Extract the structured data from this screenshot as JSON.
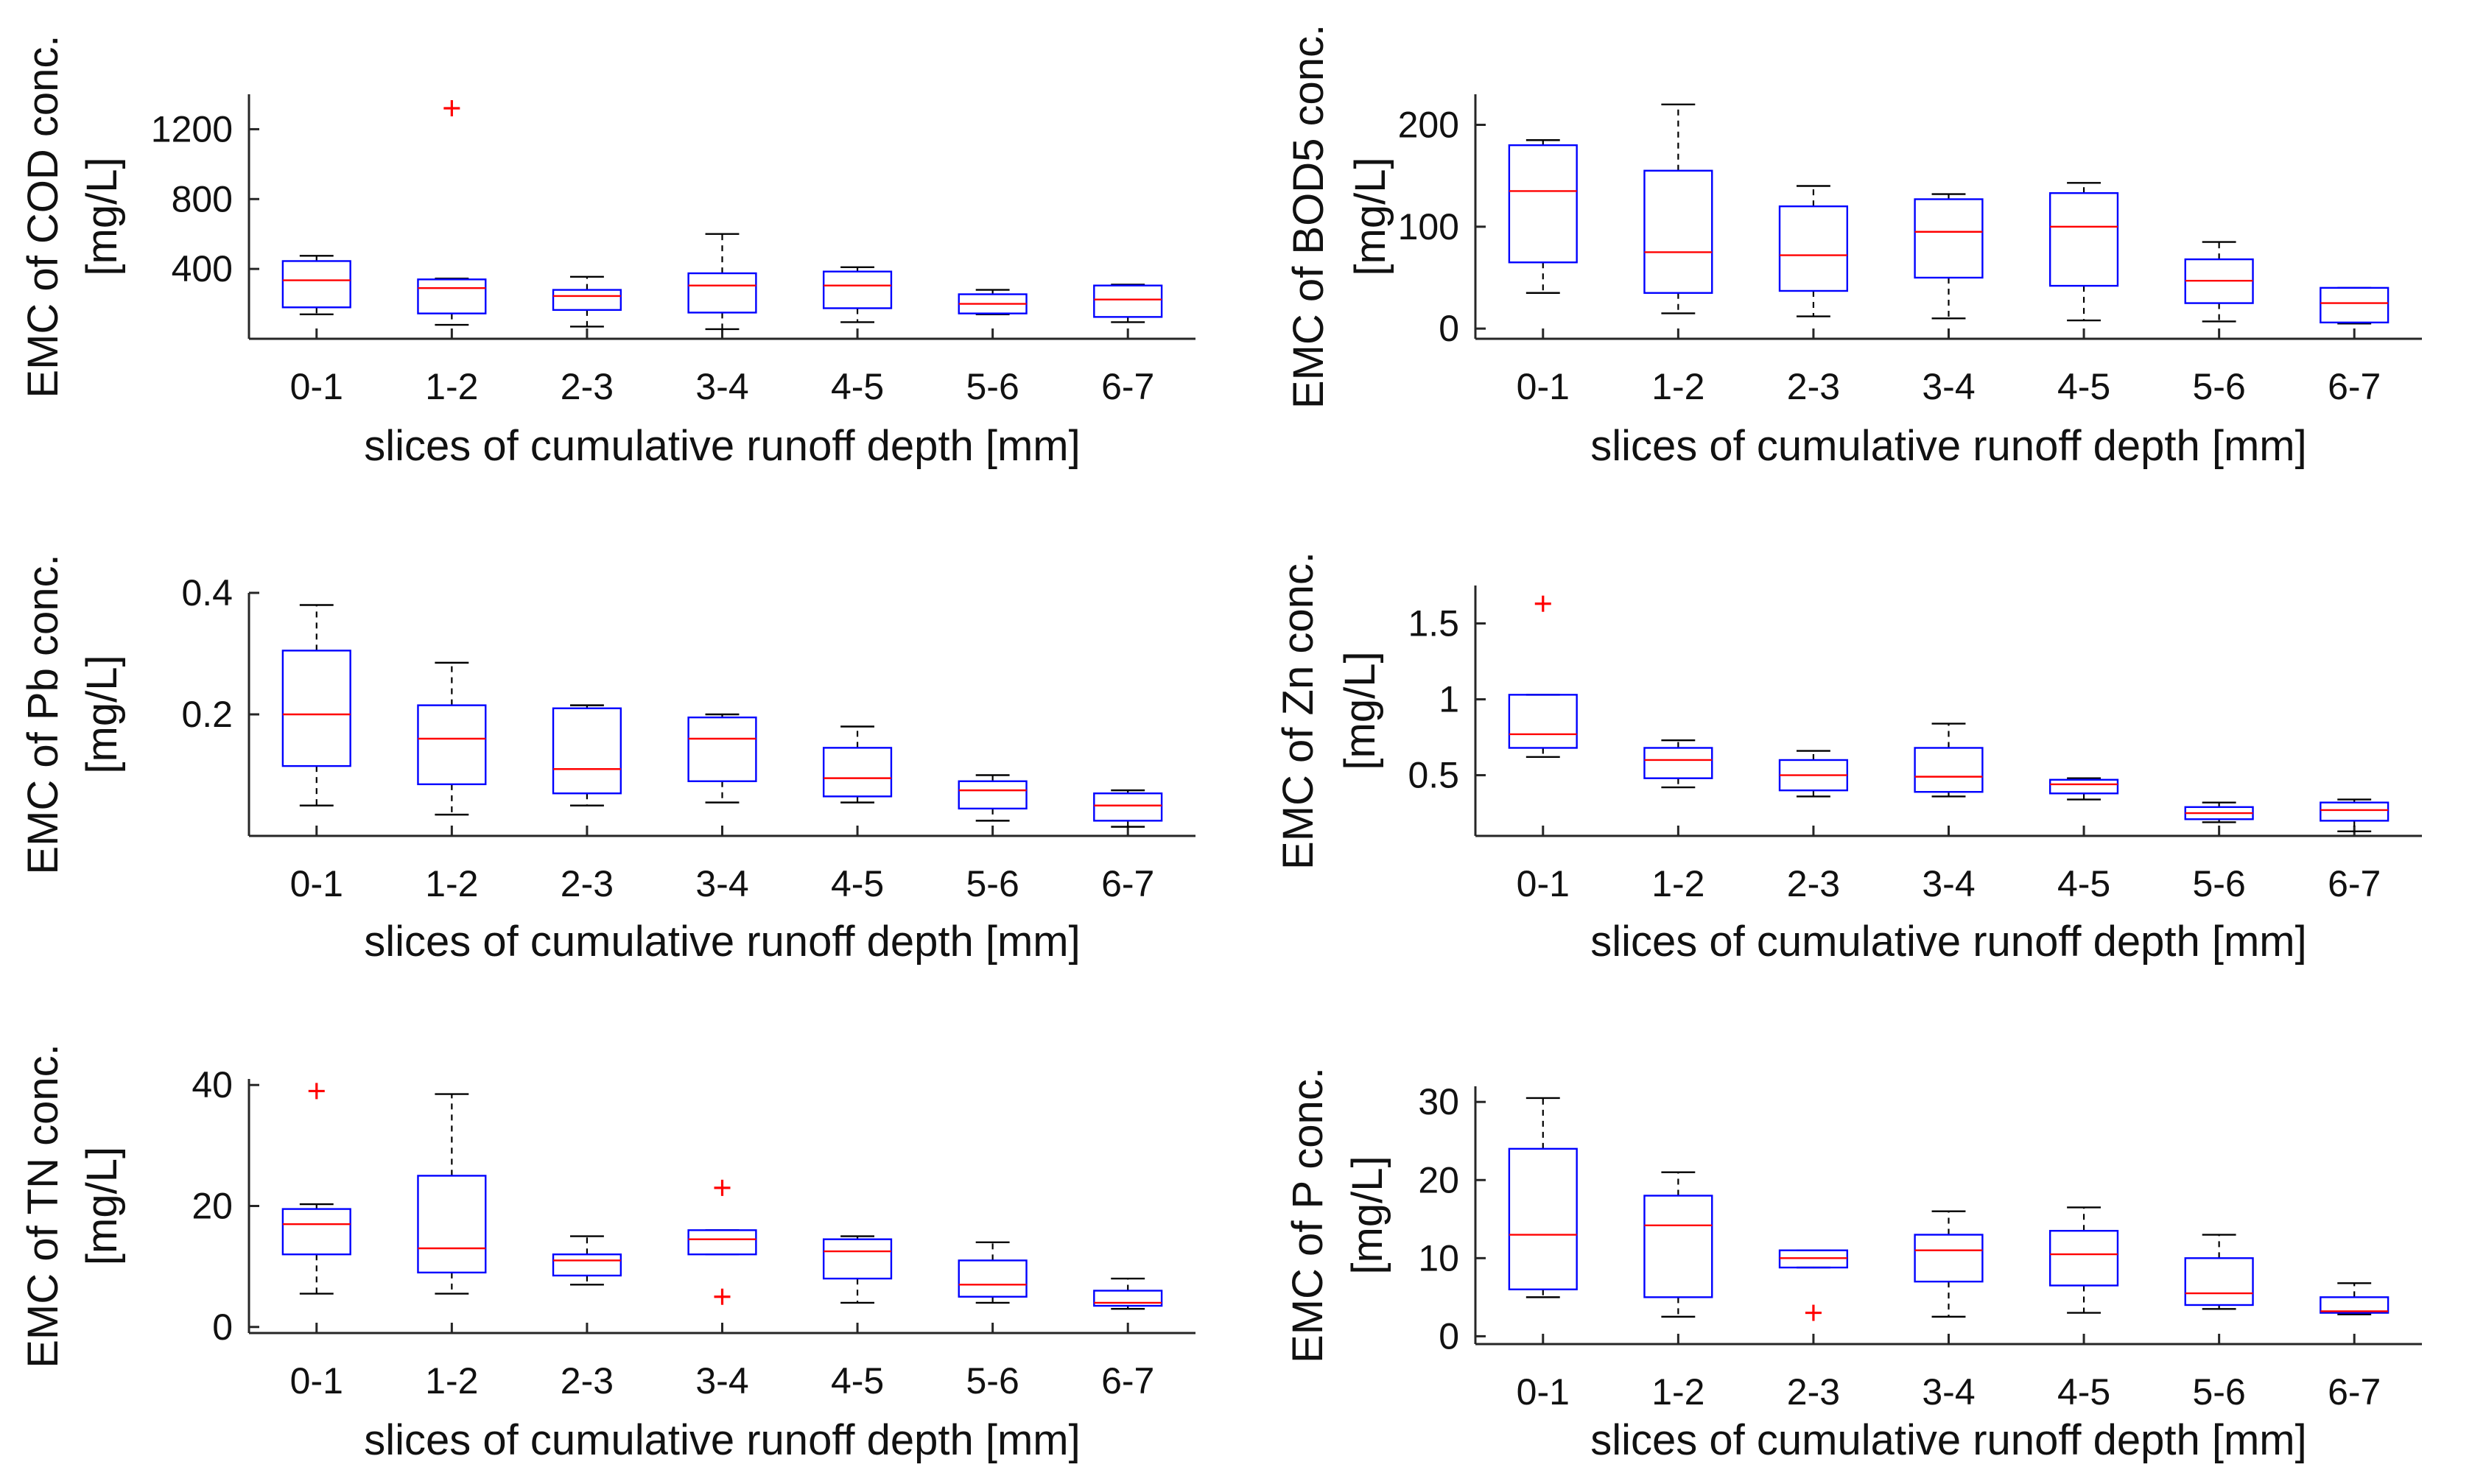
{
  "chart_data": [
    {
      "id": "cod",
      "type": "box",
      "ylabel_line1": "EMC of COD conc.",
      "ylabel_line2": "[mg/L]",
      "xlabel": "slices of cumulative runoff depth [mm]",
      "categories": [
        "0-1",
        "1-2",
        "2-3",
        "3-4",
        "4-5",
        "5-6",
        "6-7"
      ],
      "ylim": [
        0,
        1400
      ],
      "yticks": [
        400,
        800,
        1200
      ],
      "ytick_labels": [
        "400",
        "800",
        "1200"
      ],
      "boxes": [
        {
          "min": 140,
          "q1": 180,
          "median": 335,
          "q3": 445,
          "max": 475,
          "outliers": []
        },
        {
          "min": 80,
          "q1": 145,
          "median": 290,
          "q3": 340,
          "max": 345,
          "outliers": [
            1320
          ]
        },
        {
          "min": 70,
          "q1": 165,
          "median": 245,
          "q3": 280,
          "max": 355,
          "outliers": []
        },
        {
          "min": 55,
          "q1": 150,
          "median": 305,
          "q3": 375,
          "max": 600,
          "outliers": []
        },
        {
          "min": 95,
          "q1": 175,
          "median": 305,
          "q3": 385,
          "max": 410,
          "outliers": []
        },
        {
          "min": 140,
          "q1": 145,
          "median": 200,
          "q3": 255,
          "max": 280,
          "outliers": []
        },
        {
          "min": 95,
          "q1": 125,
          "median": 225,
          "q3": 305,
          "max": 310,
          "outliers": []
        }
      ]
    },
    {
      "id": "bod5",
      "type": "box",
      "ylabel_line1": "EMC of BOD5 conc.",
      "ylabel_line2": "[mg/L]",
      "xlabel": "slices of cumulative runoff depth [mm]",
      "categories": [
        "0-1",
        "1-2",
        "2-3",
        "3-4",
        "4-5",
        "5-6",
        "6-7"
      ],
      "ylim": [
        -10,
        230
      ],
      "yticks": [
        0,
        100,
        200
      ],
      "ytick_labels": [
        "0",
        "100",
        "200"
      ],
      "boxes": [
        {
          "min": 35,
          "q1": 65,
          "median": 135,
          "q3": 180,
          "max": 185,
          "outliers": []
        },
        {
          "min": 15,
          "q1": 35,
          "median": 75,
          "q3": 155,
          "max": 220,
          "outliers": []
        },
        {
          "min": 12,
          "q1": 37,
          "median": 72,
          "q3": 120,
          "max": 140,
          "outliers": []
        },
        {
          "min": 10,
          "q1": 50,
          "median": 95,
          "q3": 127,
          "max": 132,
          "outliers": []
        },
        {
          "min": 8,
          "q1": 42,
          "median": 100,
          "q3": 133,
          "max": 143,
          "outliers": []
        },
        {
          "min": 7,
          "q1": 25,
          "median": 47,
          "q3": 68,
          "max": 85,
          "outliers": []
        },
        {
          "min": 5,
          "q1": 6,
          "median": 25,
          "q3": 40,
          "max": 40,
          "outliers": []
        }
      ]
    },
    {
      "id": "pb",
      "type": "box",
      "ylabel_line1": "EMC of Pb conc.",
      "ylabel_line2": "[mg/L]",
      "xlabel": "slices of cumulative runoff depth [mm]",
      "categories": [
        "0-1",
        "1-2",
        "2-3",
        "3-4",
        "4-5",
        "5-6",
        "6-7"
      ],
      "ylim": [
        0,
        0.4
      ],
      "yticks": [
        0.2,
        0.4
      ],
      "ytick_labels": [
        "0.2",
        "0.4"
      ],
      "boxes": [
        {
          "min": 0.05,
          "q1": 0.115,
          "median": 0.2,
          "q3": 0.305,
          "max": 0.38,
          "outliers": []
        },
        {
          "min": 0.035,
          "q1": 0.085,
          "median": 0.16,
          "q3": 0.215,
          "max": 0.285,
          "outliers": []
        },
        {
          "min": 0.05,
          "q1": 0.07,
          "median": 0.11,
          "q3": 0.21,
          "max": 0.215,
          "outliers": []
        },
        {
          "min": 0.055,
          "q1": 0.09,
          "median": 0.16,
          "q3": 0.195,
          "max": 0.2,
          "outliers": []
        },
        {
          "min": 0.055,
          "q1": 0.065,
          "median": 0.095,
          "q3": 0.145,
          "max": 0.18,
          "outliers": []
        },
        {
          "min": 0.025,
          "q1": 0.045,
          "median": 0.075,
          "q3": 0.09,
          "max": 0.1,
          "outliers": []
        },
        {
          "min": 0.015,
          "q1": 0.025,
          "median": 0.05,
          "q3": 0.07,
          "max": 0.075,
          "outliers": []
        }
      ]
    },
    {
      "id": "zn",
      "type": "box",
      "ylabel_line1": "EMC of Zn conc.",
      "ylabel_line2": "[mg/L]",
      "xlabel": "slices of cumulative runoff depth [mm]",
      "categories": [
        "0-1",
        "1-2",
        "2-3",
        "3-4",
        "4-5",
        "5-6",
        "6-7"
      ],
      "ylim": [
        0.1,
        1.75
      ],
      "yticks": [
        0.5,
        1,
        1.5
      ],
      "ytick_labels": [
        "0.5",
        "1",
        "1.5"
      ],
      "boxes": [
        {
          "min": 0.62,
          "q1": 0.68,
          "median": 0.77,
          "q3": 1.03,
          "max": 1.03,
          "outliers": [
            1.63
          ]
        },
        {
          "min": 0.42,
          "q1": 0.48,
          "median": 0.6,
          "q3": 0.68,
          "max": 0.73,
          "outliers": []
        },
        {
          "min": 0.36,
          "q1": 0.4,
          "median": 0.5,
          "q3": 0.6,
          "max": 0.66,
          "outliers": []
        },
        {
          "min": 0.36,
          "q1": 0.39,
          "median": 0.49,
          "q3": 0.68,
          "max": 0.84,
          "outliers": []
        },
        {
          "min": 0.34,
          "q1": 0.38,
          "median": 0.44,
          "q3": 0.47,
          "max": 0.48,
          "outliers": []
        },
        {
          "min": 0.19,
          "q1": 0.21,
          "median": 0.25,
          "q3": 0.29,
          "max": 0.32,
          "outliers": []
        },
        {
          "min": 0.13,
          "q1": 0.2,
          "median": 0.27,
          "q3": 0.32,
          "max": 0.34,
          "outliers": []
        }
      ]
    },
    {
      "id": "tn",
      "type": "box",
      "ylabel_line1": "EMC of TN conc.",
      "ylabel_line2": "[mg/L]",
      "xlabel": "slices of cumulative runoff depth [mm]",
      "categories": [
        "0-1",
        "1-2",
        "2-3",
        "3-4",
        "4-5",
        "5-6",
        "6-7"
      ],
      "ylim": [
        -1,
        41
      ],
      "yticks": [
        0,
        20,
        40
      ],
      "ytick_labels": [
        "0",
        "20",
        "40"
      ],
      "boxes": [
        {
          "min": 5.5,
          "q1": 12,
          "median": 17,
          "q3": 19.5,
          "max": 20.3,
          "outliers": [
            39
          ]
        },
        {
          "min": 5.5,
          "q1": 9,
          "median": 13,
          "q3": 25,
          "max": 38.5,
          "outliers": []
        },
        {
          "min": 7,
          "q1": 8.5,
          "median": 11,
          "q3": 12,
          "max": 15,
          "outliers": []
        },
        {
          "min": 12,
          "q1": 12,
          "median": 14.5,
          "q3": 16,
          "max": 16,
          "outliers": [
            5,
            23
          ]
        },
        {
          "min": 4,
          "q1": 8,
          "median": 12.5,
          "q3": 14.5,
          "max": 15,
          "outliers": []
        },
        {
          "min": 4,
          "q1": 5,
          "median": 7,
          "q3": 11,
          "max": 14,
          "outliers": []
        },
        {
          "min": 3,
          "q1": 3.5,
          "median": 4,
          "q3": 6,
          "max": 8,
          "outliers": []
        }
      ]
    },
    {
      "id": "p",
      "type": "box",
      "ylabel_line1": "EMC of P conc.",
      "ylabel_line2": "[mg/L]",
      "xlabel": "slices of cumulative runoff depth [mm]",
      "categories": [
        "0-1",
        "1-2",
        "2-3",
        "3-4",
        "4-5",
        "5-6",
        "6-7"
      ],
      "ylim": [
        -1,
        32
      ],
      "yticks": [
        0,
        10,
        20,
        30
      ],
      "ytick_labels": [
        "0",
        "10",
        "20",
        "30"
      ],
      "boxes": [
        {
          "min": 5,
          "q1": 6,
          "median": 13,
          "q3": 24,
          "max": 30.5,
          "outliers": []
        },
        {
          "min": 2.5,
          "q1": 5,
          "median": 14.2,
          "q3": 18,
          "max": 21,
          "outliers": []
        },
        {
          "min": 8.8,
          "q1": 8.8,
          "median": 10,
          "q3": 11,
          "max": 11,
          "outliers": [
            3
          ]
        },
        {
          "min": 2.5,
          "q1": 7,
          "median": 11,
          "q3": 13,
          "max": 16,
          "outliers": []
        },
        {
          "min": 3,
          "q1": 6.5,
          "median": 10.5,
          "q3": 13.5,
          "max": 16.5,
          "outliers": []
        },
        {
          "min": 3.5,
          "q1": 4,
          "median": 5.5,
          "q3": 10,
          "max": 13,
          "outliers": []
        },
        {
          "min": 2.8,
          "q1": 3,
          "median": 3.2,
          "q3": 5,
          "max": 6.8,
          "outliers": []
        }
      ]
    }
  ]
}
